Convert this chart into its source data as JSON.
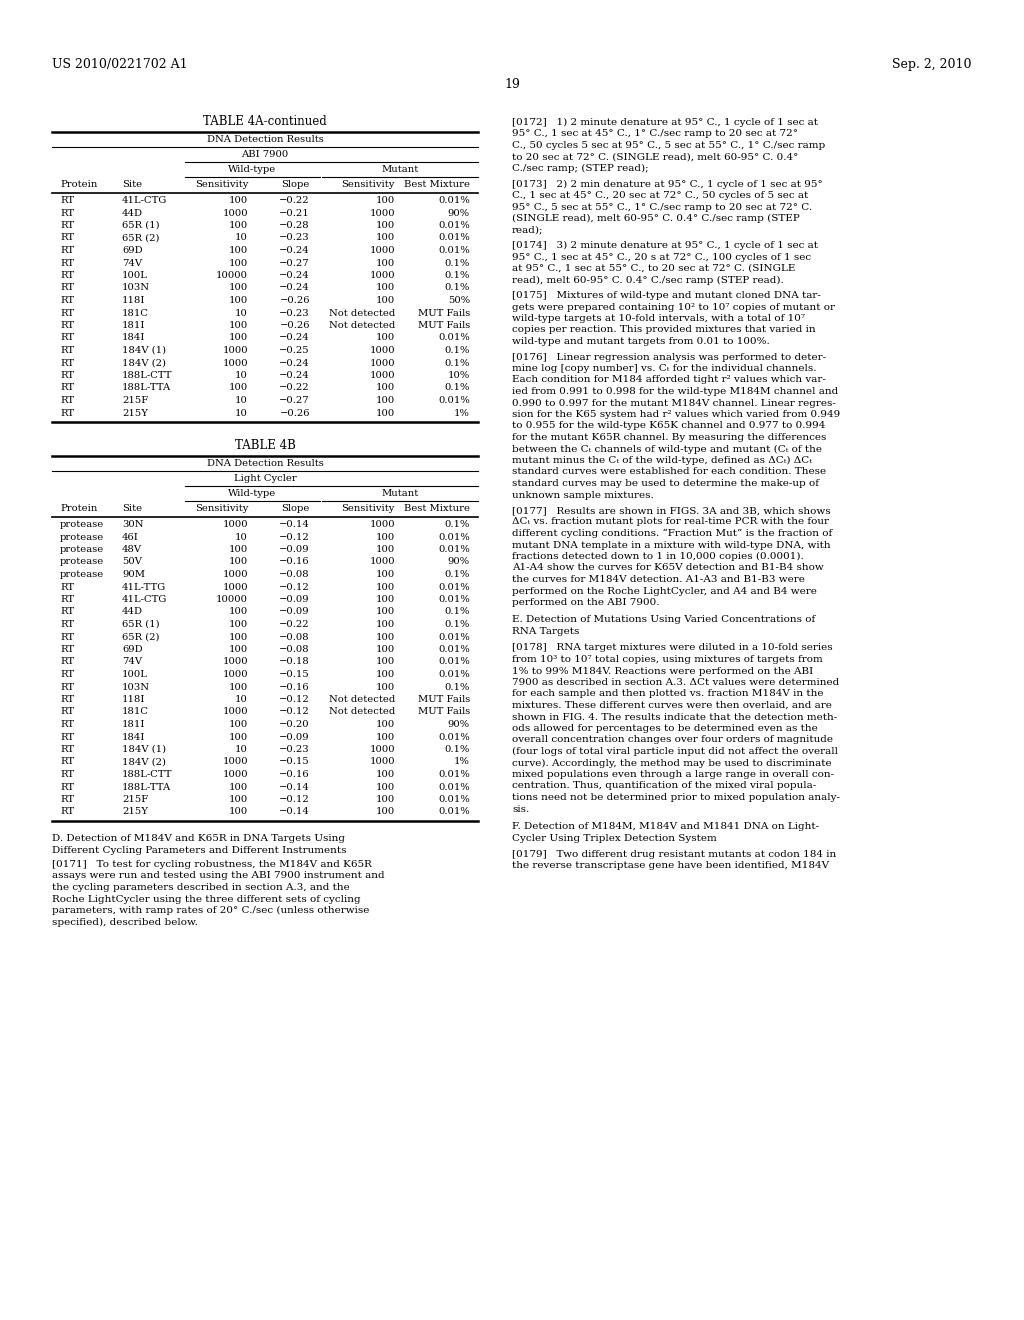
{
  "page_number": "19",
  "header_left": "US 2010/0221702 A1",
  "header_right": "Sep. 2, 2010",
  "table4a_title": "TABLE 4A-continued",
  "table4a_subtitle": "DNA Detection Results",
  "table4a_instrument": "ABI 7900",
  "table4a_wt_label": "Wild-type",
  "table4a_mut_label": "Mutant",
  "table4a_cols": [
    "Protein",
    "Site",
    "Sensitivity",
    "Slope",
    "Sensitivity",
    "Best Mixture"
  ],
  "table4a_data": [
    [
      "RT",
      "41L-CTG",
      "100",
      "−0.22",
      "100",
      "0.01%"
    ],
    [
      "RT",
      "44D",
      "1000",
      "−0.21",
      "1000",
      "90%"
    ],
    [
      "RT",
      "65R (1)",
      "100",
      "−0.28",
      "100",
      "0.01%"
    ],
    [
      "RT",
      "65R (2)",
      "10",
      "−0.23",
      "100",
      "0.01%"
    ],
    [
      "RT",
      "69D",
      "100",
      "−0.24",
      "1000",
      "0.01%"
    ],
    [
      "RT",
      "74V",
      "100",
      "−0.27",
      "100",
      "0.1%"
    ],
    [
      "RT",
      "100L",
      "10000",
      "−0.24",
      "1000",
      "0.1%"
    ],
    [
      "RT",
      "103N",
      "100",
      "−0.24",
      "100",
      "0.1%"
    ],
    [
      "RT",
      "118I",
      "100",
      "−0.26",
      "100",
      "50%"
    ],
    [
      "RT",
      "181C",
      "10",
      "−0.23",
      "Not detected",
      "MUT Fails"
    ],
    [
      "RT",
      "181I",
      "100",
      "−0.26",
      "Not detected",
      "MUT Fails"
    ],
    [
      "RT",
      "184I",
      "100",
      "−0.24",
      "100",
      "0.01%"
    ],
    [
      "RT",
      "184V (1)",
      "1000",
      "−0.25",
      "1000",
      "0.1%"
    ],
    [
      "RT",
      "184V (2)",
      "1000",
      "−0.24",
      "1000",
      "0.1%"
    ],
    [
      "RT",
      "188L-CTT",
      "10",
      "−0.24",
      "1000",
      "10%"
    ],
    [
      "RT",
      "188L-TTA",
      "100",
      "−0.22",
      "100",
      "0.1%"
    ],
    [
      "RT",
      "215F",
      "10",
      "−0.27",
      "100",
      "0.01%"
    ],
    [
      "RT",
      "215Y",
      "10",
      "−0.26",
      "100",
      "1%"
    ]
  ],
  "table4b_title": "TABLE 4B",
  "table4b_subtitle": "DNA Detection Results",
  "table4b_instrument": "Light Cycler",
  "table4b_wt_label": "Wild-type",
  "table4b_mut_label": "Mutant",
  "table4b_cols": [
    "Protein",
    "Site",
    "Sensitivity",
    "Slope",
    "Sensitivity",
    "Best Mixture"
  ],
  "table4b_data": [
    [
      "protease",
      "30N",
      "1000",
      "−0.14",
      "1000",
      "0.1%"
    ],
    [
      "protease",
      "46I",
      "10",
      "−0.12",
      "100",
      "0.01%"
    ],
    [
      "protease",
      "48V",
      "100",
      "−0.09",
      "100",
      "0.01%"
    ],
    [
      "protease",
      "50V",
      "100",
      "−0.16",
      "1000",
      "90%"
    ],
    [
      "protease",
      "90M",
      "1000",
      "−0.08",
      "100",
      "0.1%"
    ],
    [
      "RT",
      "41L-TTG",
      "1000",
      "−0.12",
      "100",
      "0.01%"
    ],
    [
      "RT",
      "41L-CTG",
      "10000",
      "−0.09",
      "100",
      "0.01%"
    ],
    [
      "RT",
      "44D",
      "100",
      "−0.09",
      "100",
      "0.1%"
    ],
    [
      "RT",
      "65R (1)",
      "100",
      "−0.22",
      "100",
      "0.1%"
    ],
    [
      "RT",
      "65R (2)",
      "100",
      "−0.08",
      "100",
      "0.01%"
    ],
    [
      "RT",
      "69D",
      "100",
      "−0.08",
      "100",
      "0.01%"
    ],
    [
      "RT",
      "74V",
      "1000",
      "−0.18",
      "100",
      "0.01%"
    ],
    [
      "RT",
      "100L",
      "1000",
      "−0.15",
      "100",
      "0.01%"
    ],
    [
      "RT",
      "103N",
      "100",
      "−0.16",
      "100",
      "0.1%"
    ],
    [
      "RT",
      "118I",
      "10",
      "−0.12",
      "Not detected",
      "MUT Fails"
    ],
    [
      "RT",
      "181C",
      "1000",
      "−0.12",
      "Not detected",
      "MUT Fails"
    ],
    [
      "RT",
      "181I",
      "100",
      "−0.20",
      "100",
      "90%"
    ],
    [
      "RT",
      "184I",
      "100",
      "−0.09",
      "100",
      "0.01%"
    ],
    [
      "RT",
      "184V (1)",
      "10",
      "−0.23",
      "1000",
      "0.1%"
    ],
    [
      "RT",
      "184V (2)",
      "1000",
      "−0.15",
      "1000",
      "1%"
    ],
    [
      "RT",
      "188L-CTT",
      "1000",
      "−0.16",
      "100",
      "0.01%"
    ],
    [
      "RT",
      "188L-TTA",
      "100",
      "−0.14",
      "100",
      "0.01%"
    ],
    [
      "RT",
      "215F",
      "100",
      "−0.12",
      "100",
      "0.01%"
    ],
    [
      "RT",
      "215Y",
      "100",
      "−0.14",
      "100",
      "0.01%"
    ]
  ],
  "section_d_title_1": "D. Detection of M184V and K65R in DNA Targets Using",
  "section_d_title_2": "Different Cycling Parameters and Different Instruments",
  "section_d_lines": [
    "[0171]   To test for cycling robustness, the M184V and K65R",
    "assays were run and tested using the ABI 7900 instrument and",
    "the cycling parameters described in section A.3, and the",
    "Roche LightCycler using the three different sets of cycling",
    "parameters, with ramp rates of 20° C./sec (unless otherwise",
    "specified), described below."
  ],
  "para_172_lines": [
    "[0172]   1) 2 minute denature at 95° C., 1 cycle of 1 sec at",
    "95° C., 1 sec at 45° C., 1° C./sec ramp to 20 sec at 72°",
    "C., 50 cycles 5 sec at 95° C., 5 sec at 55° C., 1° C./sec ramp",
    "to 20 sec at 72° C. (SINGLE read), melt 60-95° C. 0.4°",
    "C./sec ramp; (STEP read);"
  ],
  "para_173_lines": [
    "[0173]   2) 2 min denature at 95° C., 1 cycle of 1 sec at 95°",
    "C., 1 sec at 45° C., 20 sec at 72° C., 50 cycles of 5 sec at",
    "95° C., 5 sec at 55° C., 1° C./sec ramp to 20 sec at 72° C.",
    "(SINGLE read), melt 60-95° C. 0.4° C./sec ramp (STEP",
    "read);"
  ],
  "para_174_lines": [
    "[0174]   3) 2 minute denature at 95° C., 1 cycle of 1 sec at",
    "95° C., 1 sec at 45° C., 20 s at 72° C., 100 cycles of 1 sec",
    "at 95° C., 1 sec at 55° C., to 20 sec at 72° C. (SINGLE",
    "read), melt 60-95° C. 0.4° C./sec ramp (STEP read)."
  ],
  "para_175_lines": [
    "[0175]   Mixtures of wild-type and mutant cloned DNA tar-",
    "gets were prepared containing 10² to 10⁷ copies of mutant or",
    "wild-type targets at 10-fold intervals, with a total of 10⁷",
    "copies per reaction. This provided mixtures that varied in",
    "wild-type and mutant targets from 0.01 to 100%."
  ],
  "para_176_lines": [
    "[0176]   Linear regression analysis was performed to deter-",
    "mine log [copy number] vs. Cₜ for the individual channels.",
    "Each condition for M184 afforded tight r² values which var-",
    "ied from 0.991 to 0.998 for the wild-type M184M channel and",
    "0.990 to 0.997 for the mutant M184V channel. Linear regres-",
    "sion for the K65 system had r² values which varied from 0.949",
    "to 0.955 for the wild-type K65K channel and 0.977 to 0.994",
    "for the mutant K65R channel. By measuring the differences",
    "between the Cₜ channels of wild-type and mutant (Cₜ of the",
    "mutant minus the Cₜ of the wild-type, defined as ΔCₜ) ΔCₜ",
    "standard curves were established for each condition. These",
    "standard curves may be used to determine the make-up of",
    "unknown sample mixtures."
  ],
  "para_177_lines": [
    "[0177]   Results are shown in FIGS. 3A and 3B, which shows",
    "ΔCₜ vs. fraction mutant plots for real-time PCR with the four",
    "different cycling conditions. “Fraction Mut” is the fraction of",
    "mutant DNA template in a mixture with wild-type DNA, with",
    "fractions detected down to 1 in 10,000 copies (0.0001).",
    "A1-A4 show the curves for K65V detection and B1-B4 show",
    "the curves for M184V detection. A1-A3 and B1-B3 were",
    "performed on the Roche LightCycler, and A4 and B4 were",
    "performed on the ABI 7900."
  ],
  "section_e_title_1": "E. Detection of Mutations Using Varied Concentrations of",
  "section_e_title_2": "RNA Targets",
  "para_178_lines": [
    "[0178]   RNA target mixtures were diluted in a 10-fold series",
    "from 10³ to 10⁷ total copies, using mixtures of targets from",
    "1% to 99% M184V. Reactions were performed on the ABI",
    "7900 as described in section A.3. ΔCt values were determined",
    "for each sample and then plotted vs. fraction M184V in the",
    "mixtures. These different curves were then overlaid, and are",
    "shown in FIG. 4. The results indicate that the detection meth-",
    "ods allowed for percentages to be determined even as the",
    "overall concentration changes over four orders of magnitude",
    "(four logs of total viral particle input did not affect the overall",
    "curve). Accordingly, the method may be used to discriminate",
    "mixed populations even through a large range in overall con-",
    "centration. Thus, quantification of the mixed viral popula-",
    "tions need not be determined prior to mixed population analy-",
    "sis."
  ],
  "section_f_title_1": "F. Detection of M184M, M184V and M1841 DNA on Light-",
  "section_f_title_2": "Cycler Using Triplex Detection System",
  "para_179_lines": [
    "[0179]   Two different drug resistant mutants at codon 184 in",
    "the reverse transcriptase gene have been identified, M184V"
  ]
}
